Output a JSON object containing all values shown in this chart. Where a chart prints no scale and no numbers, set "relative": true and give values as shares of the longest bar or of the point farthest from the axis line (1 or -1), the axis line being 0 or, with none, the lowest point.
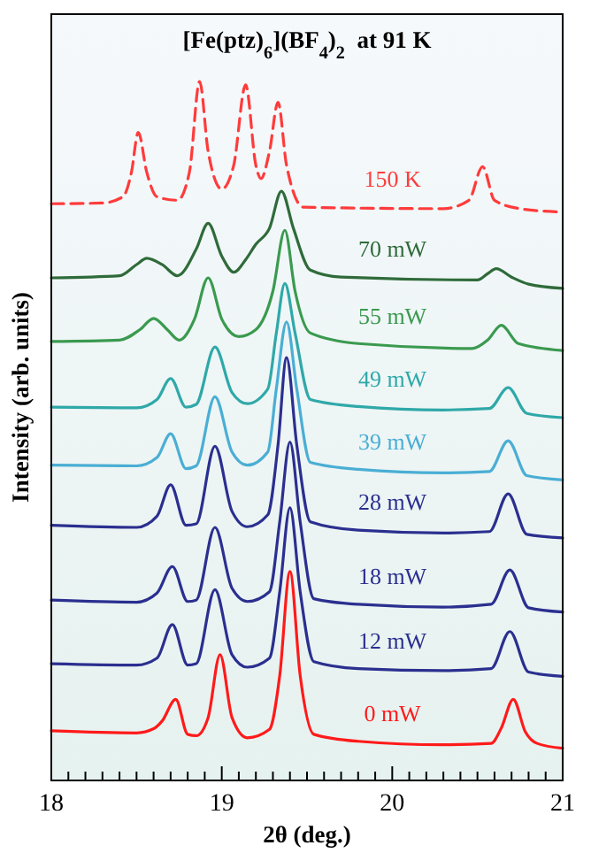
{
  "chart_data": {
    "type": "line",
    "relative": true,
    "title": "[Fe(ptz)$_{6}$](BF$_{4}$)$_{2}$  at 91 K",
    "xlabel": "2θ (deg.)",
    "ylabel": "Intensity (arb. units)",
    "xlim": [
      18,
      21
    ],
    "xticks": [
      18,
      {
        "value": 18.1,
        "label": null
      },
      {
        "value": 18.2,
        "label": null
      },
      {
        "value": 18.3,
        "label": null
      },
      {
        "value": 18.4,
        "label": null
      },
      {
        "value": 18.5,
        "label": null
      },
      {
        "value": 18.6,
        "label": null
      },
      {
        "value": 18.7,
        "label": null
      },
      {
        "value": 18.8,
        "label": null
      },
      {
        "value": 18.9,
        "label": null
      },
      19,
      {
        "value": 19.1,
        "label": null
      },
      {
        "value": 19.2,
        "label": null
      },
      {
        "value": 19.3,
        "label": null
      },
      {
        "value": 19.4,
        "label": null
      },
      {
        "value": 19.5,
        "label": null
      },
      {
        "value": 19.6,
        "label": null
      },
      {
        "value": 19.7,
        "label": null
      },
      {
        "value": 19.8,
        "label": null
      },
      {
        "value": 19.9,
        "label": null
      },
      20,
      {
        "value": 20.1,
        "label": null
      },
      {
        "value": 20.2,
        "label": null
      },
      {
        "value": 20.3,
        "label": null
      },
      {
        "value": 20.4,
        "label": null
      },
      {
        "value": 20.5,
        "label": null
      },
      {
        "value": 20.6,
        "label": null
      },
      {
        "value": 20.7,
        "label": null
      },
      {
        "value": 20.8,
        "label": null
      },
      {
        "value": 20.9,
        "label": null
      },
      21
    ],
    "grid": false,
    "series": [
      {
        "name": "150 K",
        "color": "#ff3b3b",
        "line_style": "dashed",
        "x": [
          18.0,
          18.3,
          18.42,
          18.47,
          18.51,
          18.56,
          18.62,
          18.74,
          18.81,
          18.87,
          18.92,
          19.0,
          19.07,
          19.14,
          19.2,
          19.23,
          19.28,
          19.33,
          19.38,
          19.48,
          20.3,
          20.45,
          20.53,
          20.6,
          20.75,
          21.0
        ],
        "values": [
          0.825,
          0.826,
          0.835,
          0.87,
          0.927,
          0.87,
          0.835,
          0.83,
          0.87,
          1.0,
          0.9,
          0.846,
          0.88,
          0.995,
          0.88,
          0.861,
          0.9,
          0.97,
          0.88,
          0.82,
          0.818,
          0.83,
          0.878,
          0.83,
          0.818,
          0.813
        ]
      },
      {
        "name": "70 mW",
        "color": "#2f6b3a",
        "x": [
          18.0,
          18.4,
          18.5,
          18.56,
          18.65,
          18.74,
          18.85,
          18.92,
          19.0,
          19.07,
          19.14,
          19.2,
          19.28,
          19.35,
          19.42,
          19.52,
          19.7,
          20.5,
          20.56,
          20.61,
          20.7,
          20.8,
          21.0
        ],
        "values": [
          0.719,
          0.722,
          0.738,
          0.747,
          0.738,
          0.722,
          0.76,
          0.797,
          0.75,
          0.727,
          0.745,
          0.767,
          0.79,
          0.843,
          0.79,
          0.73,
          0.72,
          0.716,
          0.725,
          0.732,
          0.72,
          0.71,
          0.704
        ]
      },
      {
        "name": "55 mW",
        "color": "#3a9a4f",
        "x": [
          18.0,
          18.4,
          18.52,
          18.6,
          18.68,
          18.75,
          18.84,
          18.92,
          19.0,
          19.1,
          19.2,
          19.3,
          19.37,
          19.43,
          19.52,
          19.8,
          20.47,
          20.56,
          20.64,
          20.74,
          21.0
        ],
        "values": [
          0.628,
          0.63,
          0.645,
          0.661,
          0.645,
          0.63,
          0.66,
          0.719,
          0.66,
          0.635,
          0.645,
          0.7,
          0.787,
          0.7,
          0.64,
          0.625,
          0.618,
          0.63,
          0.651,
          0.625,
          0.615
        ]
      },
      {
        "name": "49 mW",
        "color": "#2fa8a8",
        "x": [
          18.0,
          18.5,
          18.62,
          18.7,
          18.79,
          18.85,
          18.96,
          19.06,
          19.15,
          19.27,
          19.32,
          19.37,
          19.43,
          19.52,
          19.8,
          20.3,
          20.57,
          20.68,
          20.79,
          21.0
        ],
        "values": [
          0.534,
          0.533,
          0.545,
          0.575,
          0.534,
          0.538,
          0.62,
          0.555,
          0.539,
          0.56,
          0.64,
          0.711,
          0.64,
          0.545,
          0.535,
          0.53,
          0.532,
          0.562,
          0.525,
          0.519
        ]
      },
      {
        "name": "39 mW",
        "color": "#4aaed4",
        "x": [
          18.0,
          18.5,
          18.62,
          18.7,
          18.79,
          18.85,
          18.96,
          19.06,
          19.15,
          19.27,
          19.32,
          19.38,
          19.44,
          19.52,
          19.8,
          20.3,
          20.57,
          20.68,
          20.79,
          21.0
        ],
        "values": [
          0.451,
          0.45,
          0.462,
          0.496,
          0.446,
          0.45,
          0.549,
          0.47,
          0.451,
          0.47,
          0.56,
          0.656,
          0.56,
          0.455,
          0.445,
          0.44,
          0.442,
          0.486,
          0.436,
          0.43
        ]
      },
      {
        "name": "28 mW",
        "color": "#2b2f8f",
        "x": [
          18.0,
          18.5,
          18.62,
          18.7,
          18.79,
          18.85,
          18.96,
          19.06,
          19.15,
          19.27,
          19.33,
          19.38,
          19.44,
          19.52,
          19.8,
          20.3,
          20.57,
          20.68,
          20.79,
          21.0
        ],
        "values": [
          0.365,
          0.362,
          0.378,
          0.423,
          0.365,
          0.367,
          0.478,
          0.385,
          0.363,
          0.38,
          0.48,
          0.605,
          0.48,
          0.37,
          0.358,
          0.354,
          0.356,
          0.41,
          0.352,
          0.347
        ]
      },
      {
        "name": "18 mW",
        "color": "#2b2f8f",
        "x": [
          18.0,
          18.5,
          18.62,
          18.71,
          18.8,
          18.85,
          18.96,
          19.06,
          19.15,
          19.28,
          19.34,
          19.4,
          19.46,
          19.54,
          19.8,
          20.3,
          20.58,
          20.69,
          20.8,
          21.0
        ],
        "values": [
          0.258,
          0.255,
          0.268,
          0.306,
          0.256,
          0.258,
          0.362,
          0.275,
          0.256,
          0.27,
          0.37,
          0.484,
          0.37,
          0.26,
          0.252,
          0.248,
          0.252,
          0.301,
          0.247,
          0.241
        ]
      },
      {
        "name": "12 mW",
        "color": "#2b2f8f",
        "x": [
          18.0,
          18.5,
          18.62,
          18.71,
          18.8,
          18.85,
          18.96,
          19.06,
          19.15,
          19.28,
          19.34,
          19.4,
          19.46,
          19.54,
          19.8,
          20.3,
          20.58,
          20.69,
          20.8,
          21.0
        ],
        "values": [
          0.167,
          0.165,
          0.175,
          0.223,
          0.165,
          0.167,
          0.273,
          0.18,
          0.162,
          0.175,
          0.27,
          0.39,
          0.27,
          0.17,
          0.16,
          0.157,
          0.16,
          0.213,
          0.155,
          0.149
        ]
      },
      {
        "name": "0 mW",
        "color": "#ff1a1a",
        "x": [
          18.0,
          18.5,
          18.6,
          18.65,
          18.73,
          18.8,
          18.85,
          18.92,
          18.99,
          19.06,
          19.15,
          19.28,
          19.34,
          19.4,
          19.46,
          19.54,
          19.8,
          20.3,
          20.58,
          20.64,
          20.71,
          20.78,
          20.85,
          21.0
        ],
        "values": [
          0.071,
          0.068,
          0.074,
          0.085,
          0.116,
          0.066,
          0.064,
          0.09,
          0.18,
          0.09,
          0.061,
          0.073,
          0.15,
          0.299,
          0.15,
          0.066,
          0.056,
          0.051,
          0.053,
          0.075,
          0.116,
          0.07,
          0.053,
          0.046
        ]
      }
    ]
  }
}
